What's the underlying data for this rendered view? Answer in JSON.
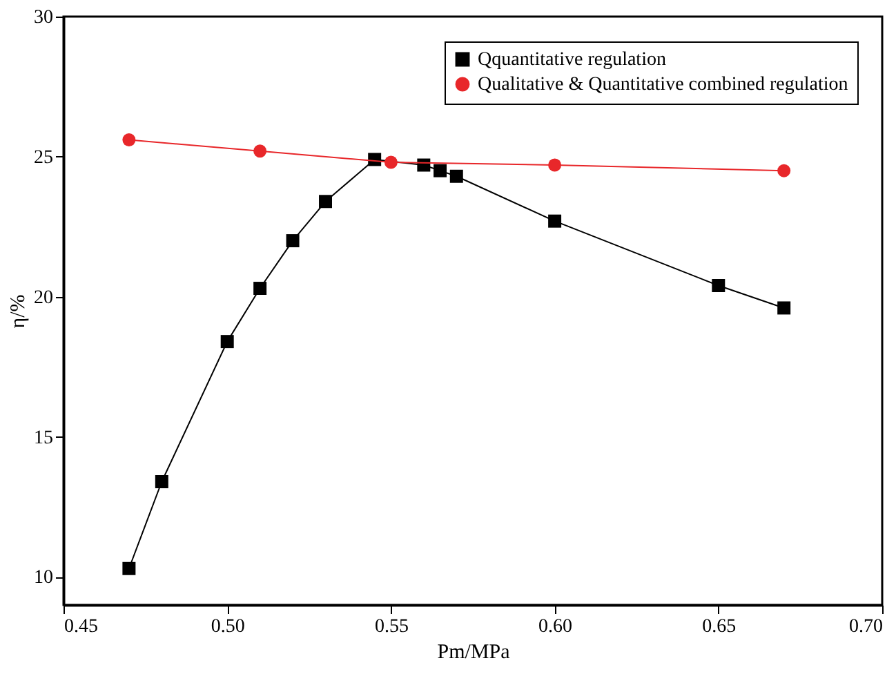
{
  "chart_data": {
    "type": "line",
    "xlabel": "Pm/MPa",
    "ylabel": "η/%",
    "xlim": [
      0.45,
      0.7
    ],
    "ylim": [
      9,
      30
    ],
    "xticks": [
      {
        "value": 0.45,
        "label": "0.45"
      },
      {
        "value": 0.5,
        "label": "0.50"
      },
      {
        "value": 0.55,
        "label": "0.55"
      },
      {
        "value": 0.6,
        "label": "0.60"
      },
      {
        "value": 0.65,
        "label": "0.65"
      },
      {
        "value": 0.7,
        "label": "0.70"
      }
    ],
    "yticks": [
      10,
      15,
      20,
      25,
      30
    ],
    "grid": false,
    "legend": "top right",
    "series": [
      {
        "name": "Qquantitative regulation",
        "color": "#000000",
        "marker": "square",
        "x": [
          0.47,
          0.48,
          0.5,
          0.51,
          0.52,
          0.53,
          0.545,
          0.56,
          0.565,
          0.57,
          0.6,
          0.65,
          0.67
        ],
        "values": [
          10.3,
          13.4,
          18.4,
          20.3,
          22.0,
          23.4,
          24.9,
          24.7,
          24.5,
          24.3,
          22.7,
          20.4,
          19.6
        ]
      },
      {
        "name": "Qualitative & Quantitative combined regulation",
        "color": "#e8272a",
        "marker": "circle",
        "x": [
          0.47,
          0.51,
          0.55,
          0.6,
          0.67
        ],
        "values": [
          25.6,
          25.2,
          24.8,
          24.7,
          24.5
        ]
      }
    ]
  }
}
